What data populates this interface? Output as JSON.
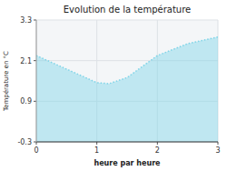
{
  "chart_data": {
    "type": "area",
    "title": "Evolution de la température",
    "x_label": "heure par heure",
    "y_label": "Température en °C",
    "x": [
      0,
      0.5,
      1.0,
      1.2,
      1.5,
      2.0,
      2.5,
      3.0
    ],
    "values": [
      2.25,
      1.85,
      1.45,
      1.42,
      1.6,
      2.25,
      2.6,
      2.8
    ],
    "color": "#7fd4e8",
    "line_style": "dotted",
    "xlim": [
      0,
      3
    ],
    "ylim": [
      -0.3,
      3.3
    ],
    "xticks": [
      0,
      1,
      2,
      3
    ],
    "yticks": [
      -0.3,
      0.9,
      2.1,
      3.3
    ],
    "grid": true
  }
}
